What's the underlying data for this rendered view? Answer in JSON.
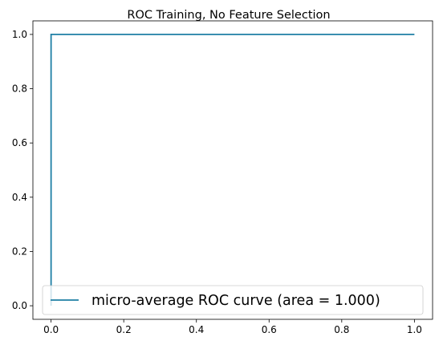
{
  "chart_data": {
    "type": "line",
    "title": "ROC Training, No Feature Selection",
    "xlabel": "",
    "ylabel": "",
    "xlim": [
      -0.05,
      1.05
    ],
    "ylim": [
      -0.05,
      1.05
    ],
    "x_ticks": [
      0.0,
      0.2,
      0.4,
      0.6,
      0.8,
      1.0
    ],
    "x_tick_labels": [
      "0.0",
      "0.2",
      "0.4",
      "0.6",
      "0.8",
      "1.0"
    ],
    "y_ticks": [
      0.0,
      0.2,
      0.4,
      0.6,
      0.8,
      1.0
    ],
    "y_tick_labels": [
      "0.0",
      "0.2",
      "0.4",
      "0.6",
      "0.8",
      "1.0"
    ],
    "grid": false,
    "legend_position": "lower-right",
    "series": [
      {
        "name": "micro-average ROC curve (area = 1.000)",
        "color": "#1f7fa5",
        "x": [
          0.0,
          0.0,
          1.0
        ],
        "y": [
          0.0,
          1.0,
          1.0
        ]
      }
    ]
  }
}
